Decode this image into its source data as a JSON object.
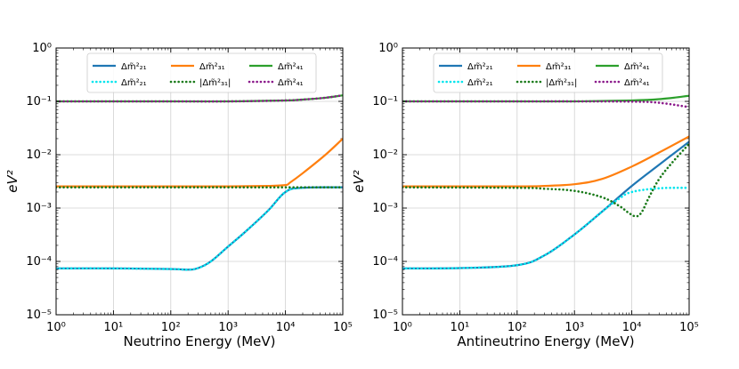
{
  "chart_data": [
    {
      "type": "line",
      "xlabel": "Neutrino Energy (MeV)",
      "ylabel": "eV²",
      "xscale": "log",
      "yscale": "log",
      "xlim": [
        1,
        100000
      ],
      "ylim": [
        1e-05,
        1
      ],
      "grid": true,
      "legend_position": "top",
      "x_ticks": [
        "10⁰",
        "10¹",
        "10²",
        "10³",
        "10⁴",
        "10⁵"
      ],
      "y_ticks": [
        "10⁻⁵",
        "10⁻⁴",
        "10⁻³",
        "10⁻²",
        "10⁻¹",
        "10⁰"
      ],
      "series": [
        {
          "name": "Δm̃²₂₁",
          "style": "solid",
          "color": "#1f77b4",
          "x": [
            1,
            10,
            100,
            200,
            300,
            500,
            1000,
            2000,
            5000,
            10000,
            20000,
            100000
          ],
          "y": [
            7.4e-05,
            7.4e-05,
            7.2e-05,
            7e-05,
            7.5e-05,
            0.0001,
            0.00019,
            0.00036,
            0.0009,
            0.002,
            0.0024,
            0.00245
          ]
        },
        {
          "name": "Δm̃²₃₁",
          "style": "solid",
          "color": "#ff7f0e",
          "x": [
            1,
            100,
            1000,
            5000,
            10000,
            12000,
            20000,
            50000,
            100000
          ],
          "y": [
            0.00255,
            0.00255,
            0.00255,
            0.0026,
            0.0027,
            0.003,
            0.0045,
            0.01,
            0.02
          ]
        },
        {
          "name": "Δm̃²₄₁",
          "style": "solid",
          "color": "#2ca02c",
          "x": [
            1,
            100,
            1000,
            10000,
            20000,
            50000,
            100000
          ],
          "y": [
            0.1,
            0.1,
            0.1,
            0.104,
            0.108,
            0.117,
            0.13
          ]
        },
        {
          "name": "Δm̃²₂₁",
          "style": "dotted",
          "color": "#00e5ee",
          "x": [
            1,
            10,
            100,
            200,
            300,
            500,
            1000,
            2000,
            5000,
            10000,
            20000,
            100000
          ],
          "y": [
            7.4e-05,
            7.4e-05,
            7.2e-05,
            7e-05,
            7.5e-05,
            0.0001,
            0.00019,
            0.00036,
            0.0009,
            0.002,
            0.0024,
            0.00245
          ]
        },
        {
          "name": "|Δm̃²₃₁|",
          "style": "dotted",
          "color": "#1a7a1a",
          "x": [
            1,
            100,
            1000,
            10000,
            100000
          ],
          "y": [
            0.00245,
            0.00245,
            0.00245,
            0.00245,
            0.00245
          ]
        },
        {
          "name": "Δm̃²₄₁",
          "style": "dotted",
          "color": "#8b1a8b",
          "x": [
            1,
            100,
            1000,
            10000,
            20000,
            50000,
            100000
          ],
          "y": [
            0.1,
            0.1,
            0.1,
            0.104,
            0.108,
            0.117,
            0.13
          ]
        }
      ]
    },
    {
      "type": "line",
      "xlabel": "Antineutrino Energy (MeV)",
      "ylabel": "eV²",
      "xscale": "log",
      "yscale": "log",
      "xlim": [
        1,
        100000
      ],
      "ylim": [
        1e-05,
        1
      ],
      "grid": true,
      "legend_position": "top",
      "x_ticks": [
        "10⁰",
        "10¹",
        "10²",
        "10³",
        "10⁴",
        "10⁵"
      ],
      "y_ticks": [
        "10⁻⁵",
        "10⁻⁴",
        "10⁻³",
        "10⁻²",
        "10⁻¹",
        "10⁰"
      ],
      "series": [
        {
          "name": "Δm̃²₂₁",
          "style": "solid",
          "color": "#1f77b4",
          "x": [
            1,
            10,
            100,
            300,
            1000,
            3000,
            10000,
            30000,
            100000
          ],
          "y": [
            7.4e-05,
            7.5e-05,
            8.5e-05,
            0.00013,
            0.00032,
            0.00085,
            0.0026,
            0.0065,
            0.0175
          ]
        },
        {
          "name": "Δm̃²₃₁",
          "style": "solid",
          "color": "#ff7f0e",
          "x": [
            1,
            100,
            300,
            1000,
            3000,
            10000,
            30000,
            100000
          ],
          "y": [
            0.00255,
            0.00255,
            0.0026,
            0.0028,
            0.0035,
            0.006,
            0.011,
            0.022
          ]
        },
        {
          "name": "Δm̃²₄₁",
          "style": "solid",
          "color": "#2ca02c",
          "x": [
            1,
            100,
            1000,
            10000,
            30000,
            100000
          ],
          "y": [
            0.1,
            0.1,
            0.1,
            0.104,
            0.11,
            0.127
          ]
        },
        {
          "name": "Δm̃²₂₁",
          "style": "dotted",
          "color": "#00e5ee",
          "x": [
            1,
            10,
            100,
            300,
            1000,
            3000,
            6000,
            10000,
            30000,
            100000
          ],
          "y": [
            7.4e-05,
            7.5e-05,
            8.5e-05,
            0.00013,
            0.00032,
            0.00085,
            0.0015,
            0.002,
            0.00235,
            0.0024
          ]
        },
        {
          "name": "|Δm̃²₃₁|",
          "style": "dotted",
          "color": "#1a7a1a",
          "x": [
            1,
            100,
            300,
            1000,
            3000,
            6000,
            9000,
            12000,
            15000,
            20000,
            30000,
            50000,
            100000
          ],
          "y": [
            0.00245,
            0.0024,
            0.0023,
            0.0021,
            0.0016,
            0.0011,
            0.0008,
            0.0007,
            0.00085,
            0.0016,
            0.0035,
            0.007,
            0.016
          ]
        },
        {
          "name": "Δm̃²₄₁",
          "style": "dotted",
          "color": "#8b1a8b",
          "x": [
            1,
            100,
            1000,
            10000,
            30000,
            100000
          ],
          "y": [
            0.1,
            0.1,
            0.1,
            0.099,
            0.094,
            0.078
          ]
        }
      ]
    }
  ]
}
